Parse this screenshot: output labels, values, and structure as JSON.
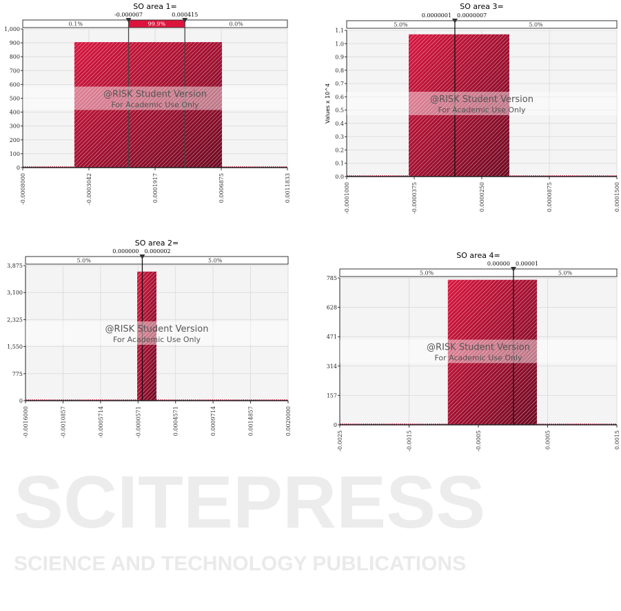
{
  "watermark_logo": {
    "name": "SCITEPRESS",
    "tagline": "SCIENCE AND TECHNOLOGY PUBLICATIONS"
  },
  "chart_watermark": {
    "line1": "@RISK Student Version",
    "line2": "For Academic Use Only"
  },
  "colors": {
    "bar": "#c0143c",
    "bar_dark": "#6e0a22",
    "highlight": "#dc143c",
    "plot_bg": "#f4f4f4",
    "grid": "#dddddd"
  },
  "chart_data": [
    {
      "type": "bar",
      "title": "SO area 1=",
      "ylabel": "",
      "xlim": [
        -0.0008,
        0.0011833
      ],
      "ylim": [
        0,
        1000
      ],
      "xtick_values": [
        -0.0008,
        -0.0003042,
        0.0001917,
        0.0006875,
        0.0011833
      ],
      "xtick_labels": [
        "-0.0008000",
        "-0.0003042",
        "0.0001917",
        "0.0006875",
        "0.0011833"
      ],
      "ytick_values": [
        0,
        100,
        200,
        300,
        400,
        500,
        600,
        700,
        800,
        900,
        1000
      ],
      "ytick_labels": [
        "0",
        "100",
        "200",
        "300",
        "400",
        "500",
        "600",
        "700",
        "800",
        "900",
        "1,000"
      ],
      "bars": [
        {
          "x0": -0.000413,
          "x1": 0.000693,
          "value": 905
        }
      ],
      "markers": [
        {
          "value": -7e-06,
          "label": "-0.000007"
        },
        {
          "value": 0.000415,
          "label": "0.000415"
        }
      ],
      "band": [
        {
          "label": "0.1%",
          "highlight": false
        },
        {
          "label": "99.9%",
          "highlight": true
        },
        {
          "label": "0.0%",
          "highlight": false
        }
      ]
    },
    {
      "type": "bar",
      "title": "SO area 3=",
      "ylabel": "Values x 10^4",
      "xlim": [
        -0.0001,
        0.00015
      ],
      "ylim": [
        0,
        1.1
      ],
      "xtick_values": [
        -0.0001,
        -3.75e-05,
        2.5e-05,
        8.75e-05,
        0.00015
      ],
      "xtick_labels": [
        "-0.0001000",
        "-0.0000375",
        "0.0000250",
        "0.0000875",
        "0.0001500"
      ],
      "ytick_values": [
        0,
        0.1,
        0.2,
        0.3,
        0.4,
        0.5,
        0.6,
        0.7,
        0.8,
        0.9,
        1.0,
        1.1
      ],
      "ytick_labels": [
        "0.0",
        "0.1",
        "0.2",
        "0.3",
        "0.4",
        "0.5",
        "0.6",
        "0.7",
        "0.8",
        "0.9",
        "1.0",
        "1.1"
      ],
      "bars": [
        {
          "x0": -4.26e-05,
          "x1": 5.05e-05,
          "value": 1.07
        }
      ],
      "markers": [
        {
          "value": 1e-07,
          "left_label": "0.0000001",
          "right_label": "0.0000007"
        }
      ],
      "band": [
        {
          "label": "5.0%",
          "highlight": false
        },
        {
          "label": "5.0%",
          "highlight": false
        }
      ]
    },
    {
      "type": "bar",
      "title": "SO area 2=",
      "ylabel": "",
      "xlim": [
        -0.0016,
        0.002
      ],
      "ylim": [
        0,
        3875
      ],
      "xtick_values": [
        -0.0016,
        -0.0010857,
        -0.0005714,
        -5.71e-05,
        0.0004571,
        0.0009714,
        0.0014857,
        0.002
      ],
      "xtick_labels": [
        "-0.0016000",
        "-0.0010857",
        "-0.0005714",
        "-0.0000571",
        "0.0004571",
        "0.0009714",
        "0.0014857",
        "0.0020000"
      ],
      "ytick_values": [
        0,
        775,
        1550,
        2325,
        3100,
        3875
      ],
      "ytick_labels": [
        "0",
        "775",
        "1,550",
        "2,325",
        "3,100",
        "3,875"
      ],
      "bars": [
        {
          "x0": -6.9e-05,
          "x1": 0.000195,
          "value": 3700
        }
      ],
      "markers": [
        {
          "value": 1e-06,
          "left_label": "0.000000",
          "right_label": "0.000002"
        }
      ],
      "band": [
        {
          "label": "5.0%",
          "highlight": false
        },
        {
          "label": "5.0%",
          "highlight": false
        }
      ]
    },
    {
      "type": "bar",
      "title": "SO area 4=",
      "ylabel": "",
      "xlim": [
        -0.0025,
        0.0015
      ],
      "ylim": [
        0,
        785
      ],
      "xtick_values": [
        -0.0025,
        -0.0015,
        -0.0005,
        0.0005,
        0.0015
      ],
      "xtick_labels": [
        "-0.0025",
        "-0.0015",
        "-0.0005",
        "0.0005",
        "0.0015"
      ],
      "ytick_values": [
        0,
        157,
        314,
        471,
        628,
        785
      ],
      "ytick_labels": [
        "0",
        "157",
        "314",
        "471",
        "628",
        "785"
      ],
      "bars": [
        {
          "x0": -0.00094,
          "x1": 0.000346,
          "value": 775
        }
      ],
      "markers": [
        {
          "value": 7.5e-06,
          "left_label": "0.00000",
          "right_label": "0.00001"
        }
      ],
      "band": [
        {
          "label": "5.0%",
          "highlight": false
        },
        {
          "label": "5.0%",
          "highlight": false
        }
      ]
    }
  ]
}
